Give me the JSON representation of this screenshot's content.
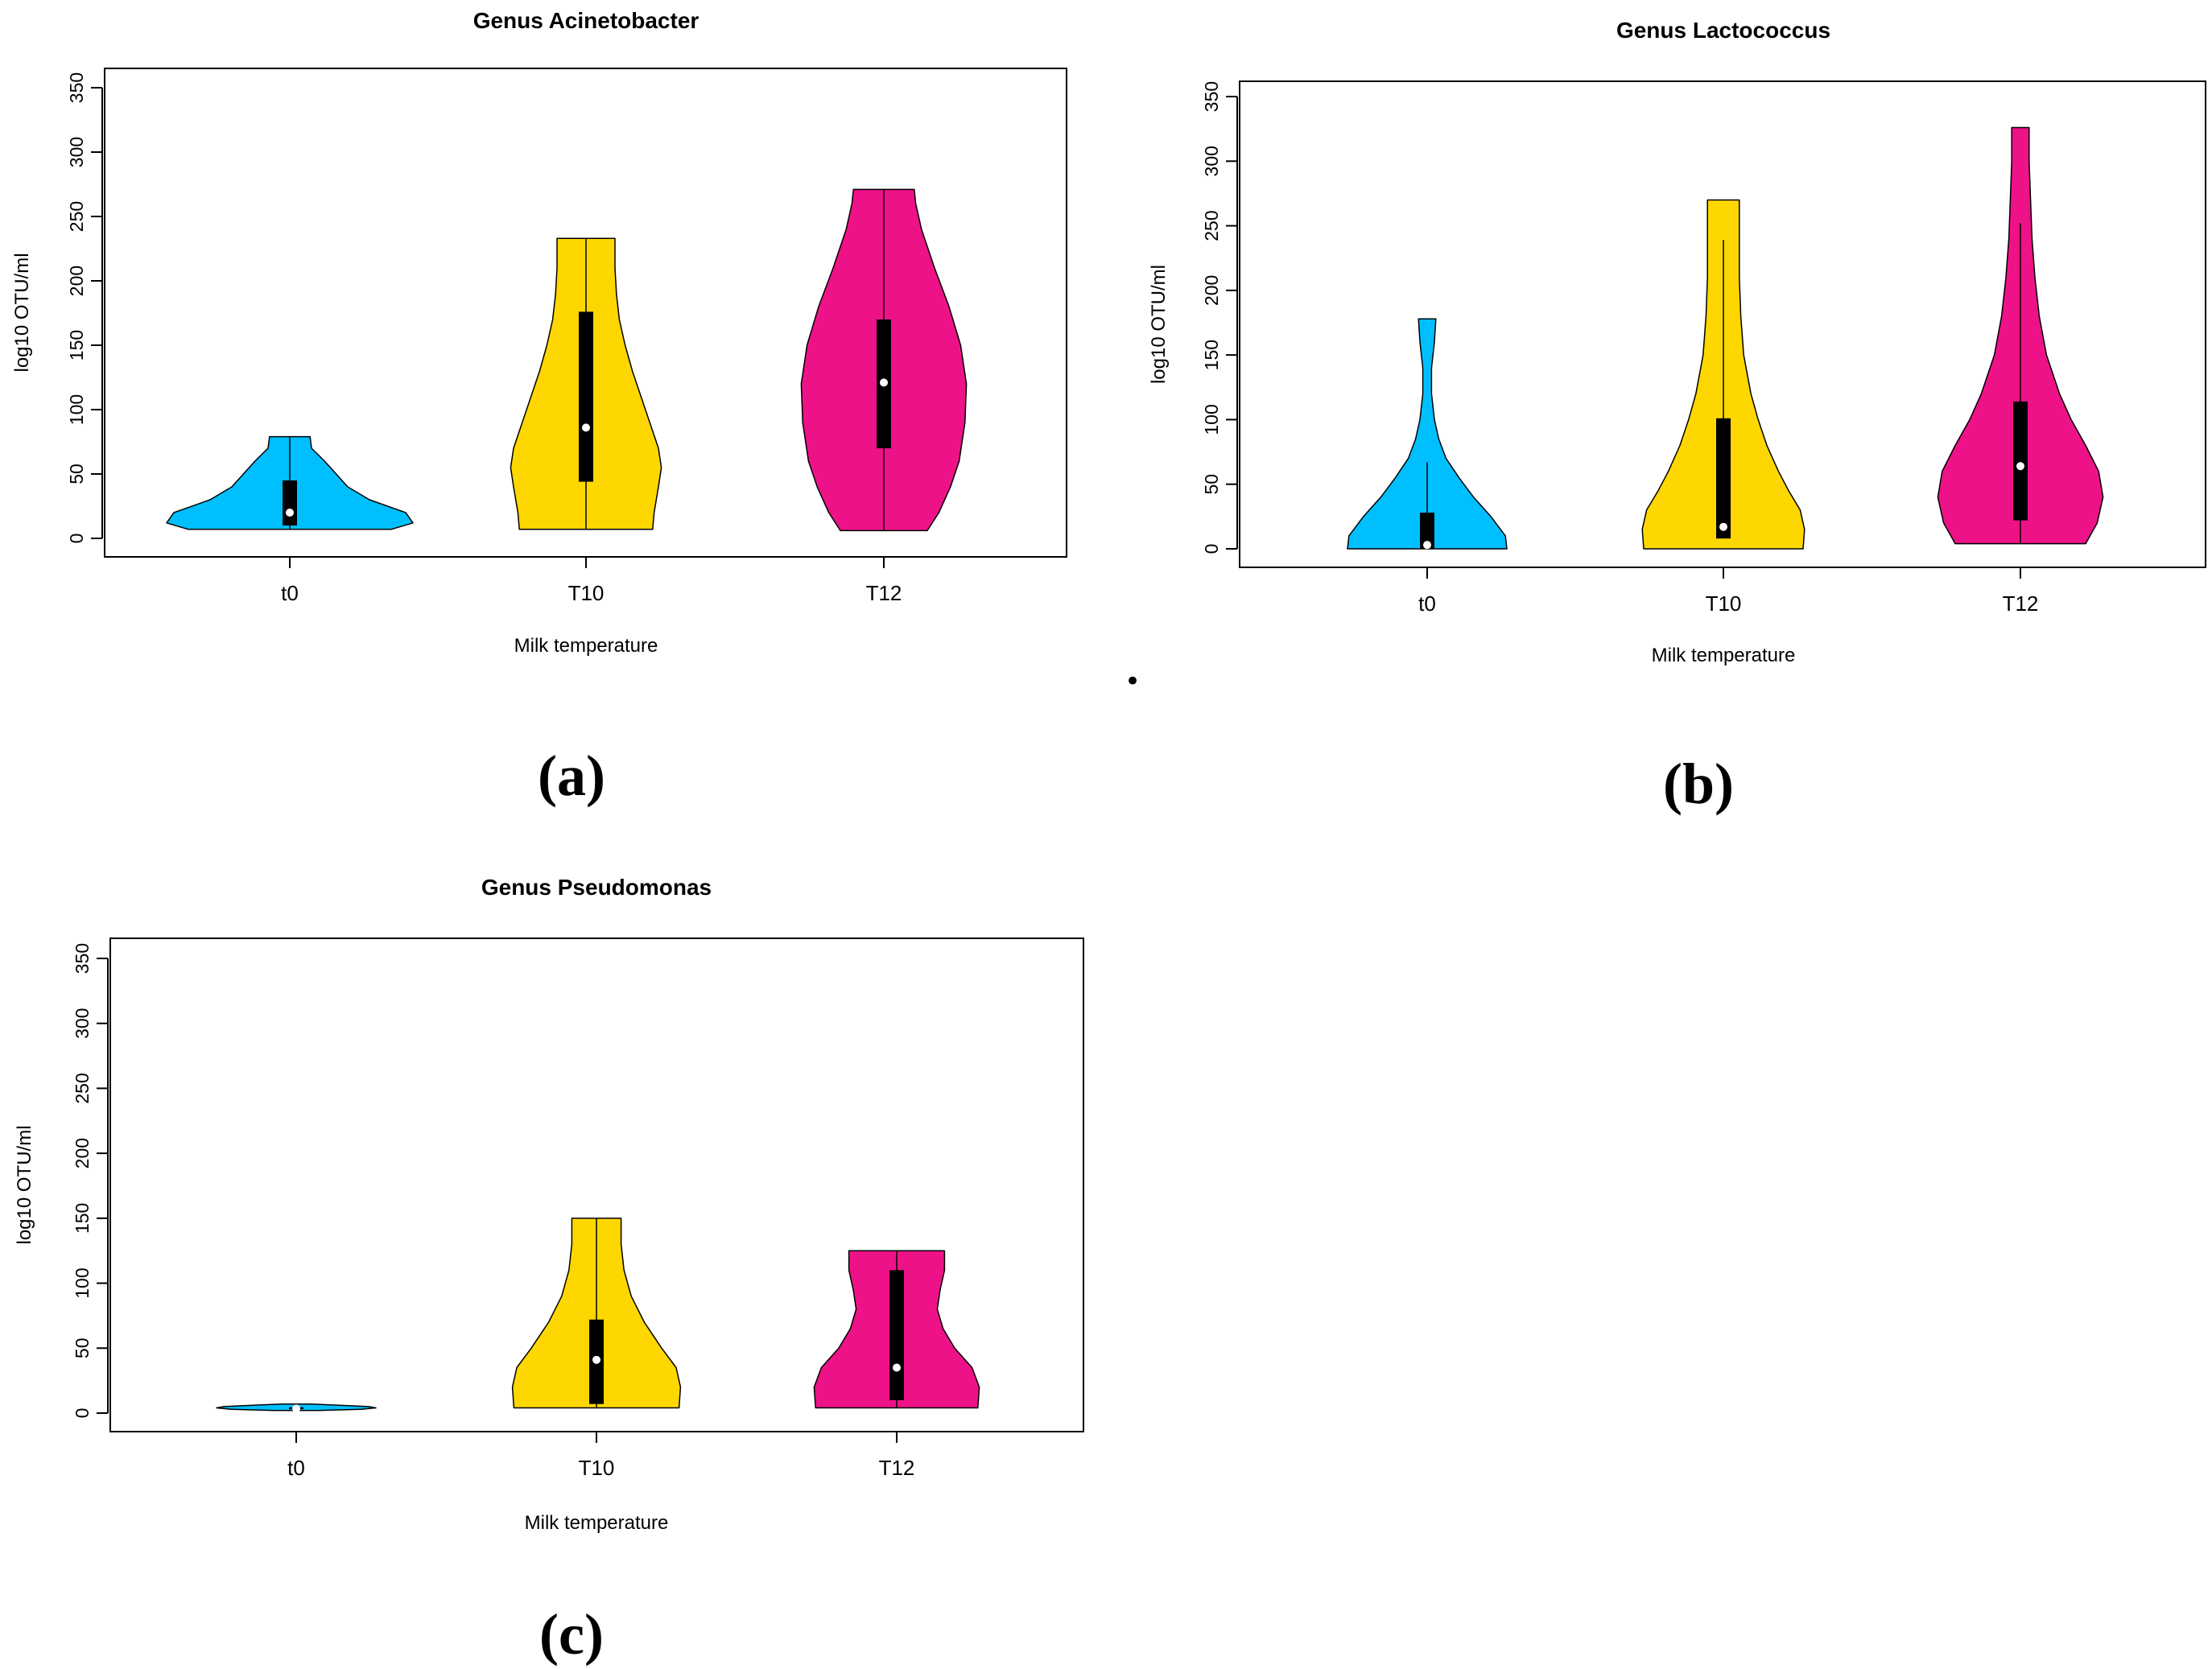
{
  "colors": {
    "t0": "#00BFFF",
    "T10": "#FFD700",
    "T12": "#EE1289",
    "box": "#000000",
    "median": "#FFFFFF"
  },
  "chart_data": [
    {
      "type": "violin",
      "panel_label": "(a)",
      "title": "Genus Acinetobacter",
      "xlabel": "Milk temperature",
      "ylabel": "log10 OTU/ml",
      "ylim": [
        0,
        350
      ],
      "yticks": [
        0,
        50,
        100,
        150,
        200,
        250,
        300,
        350
      ],
      "categories": [
        "t0",
        "T10",
        "T12"
      ],
      "series": [
        {
          "category": "t0",
          "min": 7,
          "max": 79,
          "q1": 10,
          "median": 20,
          "q3": 45,
          "whisker_low": 7,
          "whisker_high": 79,
          "density": [
            [
              7,
              0.7
            ],
            [
              12,
              0.85
            ],
            [
              20,
              0.8
            ],
            [
              30,
              0.55
            ],
            [
              40,
              0.4
            ],
            [
              50,
              0.32
            ],
            [
              60,
              0.24
            ],
            [
              70,
              0.15
            ],
            [
              79,
              0.14
            ]
          ]
        },
        {
          "category": "T10",
          "min": 7,
          "max": 233,
          "q1": 44,
          "median": 86,
          "q3": 176,
          "whisker_low": 7,
          "whisker_high": 233,
          "density": [
            [
              7,
              0.46
            ],
            [
              20,
              0.47
            ],
            [
              40,
              0.5
            ],
            [
              55,
              0.52
            ],
            [
              70,
              0.5
            ],
            [
              90,
              0.44
            ],
            [
              110,
              0.38
            ],
            [
              130,
              0.32
            ],
            [
              150,
              0.27
            ],
            [
              170,
              0.23
            ],
            [
              190,
              0.21
            ],
            [
              210,
              0.2
            ],
            [
              233,
              0.2
            ]
          ]
        },
        {
          "category": "T12",
          "min": 6,
          "max": 271,
          "q1": 70,
          "median": 121,
          "q3": 170,
          "whisker_low": 6,
          "whisker_high": 271,
          "density": [
            [
              6,
              0.3
            ],
            [
              20,
              0.38
            ],
            [
              40,
              0.46
            ],
            [
              60,
              0.52
            ],
            [
              90,
              0.56
            ],
            [
              120,
              0.57
            ],
            [
              150,
              0.53
            ],
            [
              180,
              0.45
            ],
            [
              210,
              0.35
            ],
            [
              240,
              0.26
            ],
            [
              260,
              0.22
            ],
            [
              271,
              0.21
            ]
          ]
        }
      ]
    },
    {
      "type": "violin",
      "panel_label": "(b)",
      "title": "Genus Lactococcus",
      "xlabel": "Milk temperature",
      "ylabel": "log10 OTU/ml",
      "ylim": [
        0,
        350
      ],
      "yticks": [
        0,
        50,
        100,
        150,
        200,
        250,
        300,
        350
      ],
      "categories": [
        "t0",
        "T10",
        "T12"
      ],
      "series": [
        {
          "category": "t0",
          "min": 0,
          "max": 178,
          "q1": 0,
          "median": 3,
          "q3": 28,
          "whisker_low": 0,
          "whisker_high": 67,
          "density": [
            [
              0,
              0.55
            ],
            [
              10,
              0.54
            ],
            [
              25,
              0.44
            ],
            [
              40,
              0.32
            ],
            [
              55,
              0.22
            ],
            [
              70,
              0.13
            ],
            [
              85,
              0.08
            ],
            [
              100,
              0.05
            ],
            [
              120,
              0.03
            ],
            [
              140,
              0.03
            ],
            [
              160,
              0.05
            ],
            [
              178,
              0.06
            ]
          ]
        },
        {
          "category": "T10",
          "min": 0,
          "max": 270,
          "q1": 8,
          "median": 17,
          "q3": 101,
          "whisker_low": 8,
          "whisker_high": 239,
          "density": [
            [
              0,
              0.55
            ],
            [
              15,
              0.56
            ],
            [
              30,
              0.53
            ],
            [
              45,
              0.45
            ],
            [
              60,
              0.38
            ],
            [
              80,
              0.3
            ],
            [
              100,
              0.24
            ],
            [
              120,
              0.19
            ],
            [
              150,
              0.14
            ],
            [
              180,
              0.12
            ],
            [
              210,
              0.11
            ],
            [
              240,
              0.11
            ],
            [
              270,
              0.11
            ]
          ]
        },
        {
          "category": "T12",
          "min": 4,
          "max": 326,
          "q1": 22,
          "median": 64,
          "q3": 114,
          "whisker_low": 4,
          "whisker_high": 252,
          "density": [
            [
              4,
              0.45
            ],
            [
              20,
              0.53
            ],
            [
              40,
              0.57
            ],
            [
              60,
              0.54
            ],
            [
              80,
              0.45
            ],
            [
              100,
              0.35
            ],
            [
              120,
              0.27
            ],
            [
              150,
              0.18
            ],
            [
              180,
              0.13
            ],
            [
              210,
              0.1
            ],
            [
              240,
              0.08
            ],
            [
              270,
              0.07
            ],
            [
              300,
              0.06
            ],
            [
              326,
              0.06
            ]
          ]
        }
      ]
    },
    {
      "type": "violin",
      "panel_label": "(c)",
      "title": "Genus Pseudomonas",
      "xlabel": "Milk temperature",
      "ylabel": "log10 OTU/ml",
      "ylim": [
        0,
        350
      ],
      "yticks": [
        0,
        50,
        100,
        150,
        200,
        250,
        300,
        350
      ],
      "categories": [
        "t0",
        "T10",
        "T12"
      ],
      "series": [
        {
          "category": "t0",
          "min": 2,
          "max": 7,
          "q1": 3,
          "median": 3.5,
          "q3": 4.5,
          "whisker_low": 2,
          "whisker_high": 7,
          "density": [
            [
              2,
              0.15
            ],
            [
              3,
              0.45
            ],
            [
              4,
              0.55
            ],
            [
              5,
              0.5
            ],
            [
              6,
              0.3
            ],
            [
              7,
              0.1
            ]
          ]
        },
        {
          "category": "T10",
          "min": 4,
          "max": 150,
          "q1": 7,
          "median": 41,
          "q3": 72,
          "whisker_low": 4,
          "whisker_high": 150,
          "density": [
            [
              4,
              0.57
            ],
            [
              20,
              0.58
            ],
            [
              35,
              0.55
            ],
            [
              50,
              0.45
            ],
            [
              70,
              0.33
            ],
            [
              90,
              0.24
            ],
            [
              110,
              0.19
            ],
            [
              130,
              0.17
            ],
            [
              150,
              0.17
            ]
          ]
        },
        {
          "category": "T12",
          "min": 4,
          "max": 125,
          "q1": 10,
          "median": 35,
          "q3": 110,
          "whisker_low": 4,
          "whisker_high": 125,
          "density": [
            [
              4,
              0.56
            ],
            [
              20,
              0.57
            ],
            [
              35,
              0.52
            ],
            [
              50,
              0.4
            ],
            [
              65,
              0.32
            ],
            [
              80,
              0.28
            ],
            [
              95,
              0.3
            ],
            [
              110,
              0.33
            ],
            [
              125,
              0.33
            ]
          ]
        }
      ]
    }
  ],
  "stray_mark": "•"
}
